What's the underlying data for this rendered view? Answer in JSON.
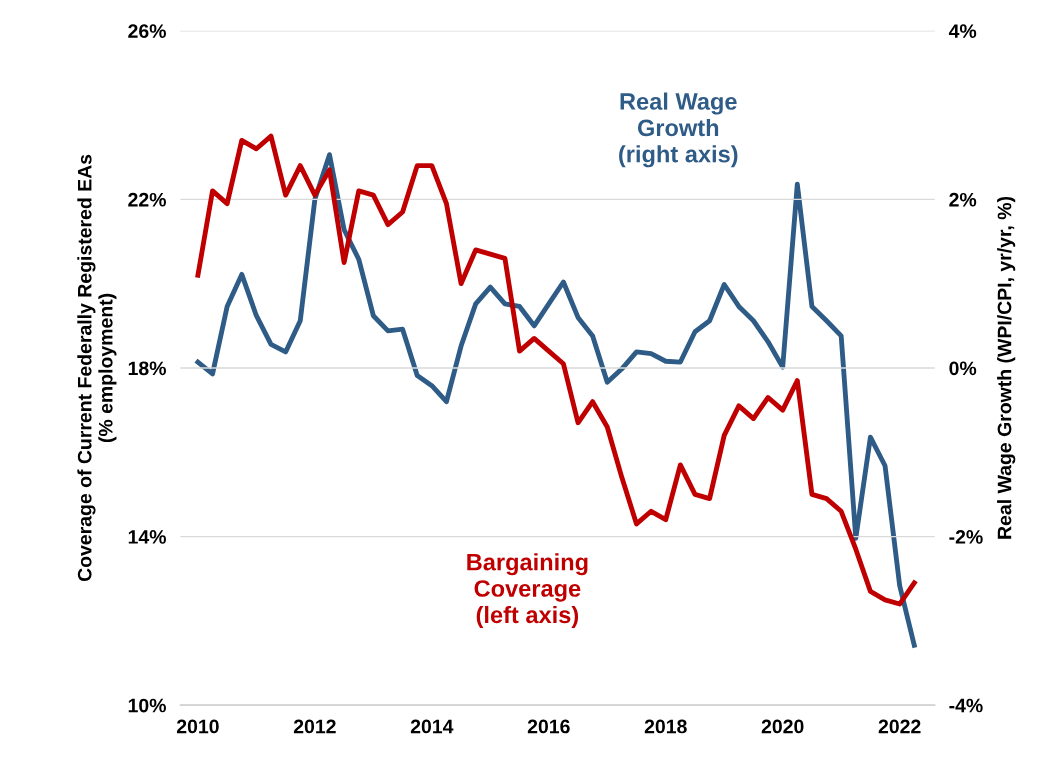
{
  "chart_data": {
    "type": "line",
    "ylabel": "Coverage of Current Federally Registered EAs\n(% employment)",
    "y2label": "Real Wage Growth (WPI/CPI, yr/yr, %)",
    "x": [
      2010.0,
      2010.25,
      2010.5,
      2010.75,
      2011.0,
      2011.25,
      2011.5,
      2011.75,
      2012.0,
      2012.25,
      2012.5,
      2012.75,
      2013.0,
      2013.25,
      2013.5,
      2013.75,
      2014.0,
      2014.25,
      2014.5,
      2014.75,
      2015.0,
      2015.25,
      2015.5,
      2015.75,
      2016.0,
      2016.25,
      2016.5,
      2016.75,
      2017.0,
      2017.25,
      2017.5,
      2017.75,
      2018.0,
      2018.25,
      2018.5,
      2018.75,
      2019.0,
      2019.25,
      2019.5,
      2019.75,
      2020.0,
      2020.25,
      2020.5,
      2020.75,
      2021.0,
      2021.25,
      2021.5,
      2021.75,
      2022.0,
      2022.25
    ],
    "series": [
      {
        "name": "Bargaining\nCoverage\n(left axis)",
        "color": "#c00000",
        "values": [
          20.2,
          22.2,
          21.9,
          23.4,
          23.2,
          23.5,
          22.1,
          22.8,
          22.1,
          22.7,
          20.5,
          22.2,
          22.1,
          21.4,
          21.7,
          22.8,
          22.8,
          21.9,
          20.0,
          20.8,
          20.7,
          20.6,
          18.4,
          18.7,
          18.4,
          18.1,
          16.7,
          17.2,
          16.6,
          15.4,
          14.3,
          14.6,
          14.4,
          15.7,
          15.0,
          14.9,
          16.4,
          17.1,
          16.8,
          17.3,
          17.0,
          17.7,
          15.0,
          14.9,
          14.6,
          13.7,
          12.7,
          12.5,
          12.4,
          12.9
        ]
      },
      {
        "name": "Real Wage\nGrowth\n(right axis)",
        "color": "#2f5b87",
        "axis": "y2",
        "values": [
          0.07,
          -0.07,
          0.73,
          1.11,
          0.62,
          0.28,
          0.19,
          0.56,
          2.0,
          2.53,
          1.64,
          1.29,
          0.62,
          0.44,
          0.46,
          -0.09,
          -0.21,
          -0.4,
          0.26,
          0.76,
          0.96,
          0.76,
          0.73,
          0.5,
          0.76,
          1.02,
          0.6,
          0.38,
          -0.17,
          -0.01,
          0.19,
          0.17,
          0.08,
          0.07,
          0.43,
          0.56,
          0.99,
          0.73,
          0.56,
          0.31,
          0.01,
          2.18,
          0.73,
          0.56,
          0.38,
          -2.02,
          -0.82,
          -1.16,
          -2.58,
          -3.29
        ]
      }
    ],
    "xlim": [
      2009.7,
      2022.6
    ],
    "xticks": [
      2010,
      2012,
      2014,
      2016,
      2018,
      2020,
      2022
    ],
    "ylim": [
      10,
      26
    ],
    "yticks": [
      {
        "value": 10,
        "label": "10%"
      },
      {
        "value": 14,
        "label": "14%"
      },
      {
        "value": 18,
        "label": "18%"
      },
      {
        "value": 22,
        "label": "22%"
      },
      {
        "value": 26,
        "label": "26%"
      }
    ],
    "y2lim": [
      -4,
      4
    ],
    "y2ticks": [
      {
        "value": -4,
        "label": "-4%"
      },
      {
        "value": -2,
        "label": "-2%"
      },
      {
        "value": 0,
        "label": "0%"
      },
      {
        "value": 2,
        "label": "2%"
      },
      {
        "value": 4,
        "label": "4%"
      }
    ],
    "grid": "y",
    "legend": false,
    "line_style": "solid",
    "marker": "none"
  }
}
